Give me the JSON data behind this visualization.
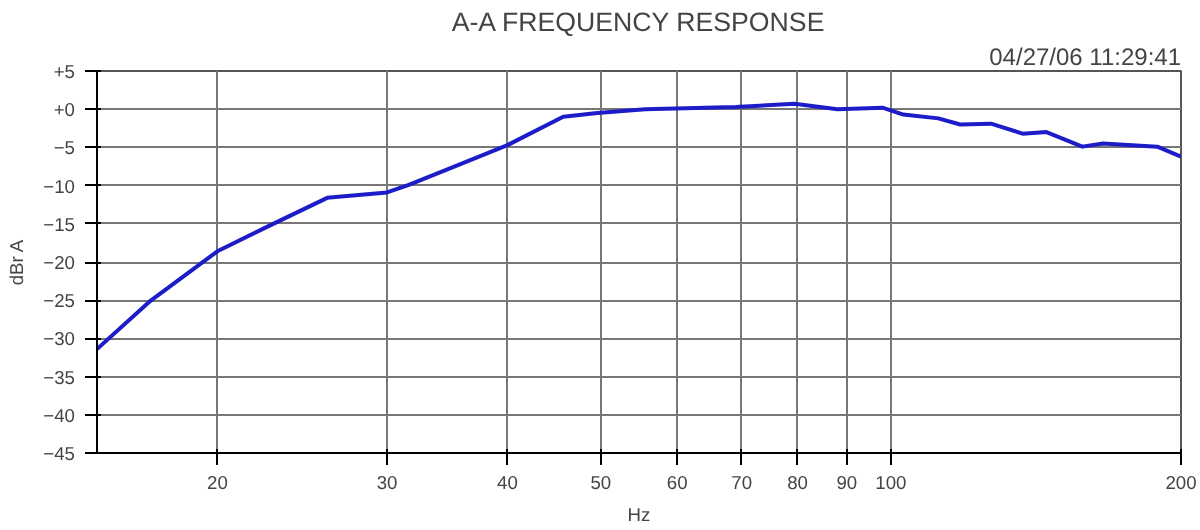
{
  "chart_data": {
    "type": "line",
    "title": "A-A FREQUENCY RESPONSE",
    "xlabel": "Hz",
    "ylabel": "dBr A",
    "annotations": [
      "04/27/06 11:29:41"
    ],
    "log": "x",
    "grid": true,
    "marker": "none",
    "line_style": "solid",
    "xlim": [
      15,
      200
    ],
    "xticks": [
      20,
      30,
      40,
      50,
      60,
      70,
      80,
      90,
      100,
      200
    ],
    "ylim": [
      -45,
      5
    ],
    "yticks": [
      {
        "value": 5,
        "label": "+5"
      },
      {
        "value": 0,
        "label": "+0"
      },
      -5,
      -10,
      -15,
      -20,
      -25,
      -30,
      -35,
      -40,
      -45
    ],
    "x": [
      15,
      17,
      20,
      22.6,
      26,
      30,
      31.6,
      34.6,
      40,
      45.7,
      49.6,
      55.6,
      69,
      79.4,
      88,
      98,
      103,
      112,
      118,
      127,
      137,
      145,
      158,
      166,
      189,
      200
    ],
    "series": [
      {
        "color": "#1c1cc8",
        "values": [
          -31.4,
          -25.2,
          -18.6,
          -15.3,
          -11.6,
          -10.9,
          -9.9,
          -7.9,
          -4.7,
          -1.0,
          -0.5,
          0,
          0.3,
          0.7,
          0,
          0.2,
          -0.7,
          -1.2,
          -2,
          -1.9,
          -3.2,
          -3.0,
          -4.9,
          -4.5,
          -4.9,
          -6.2
        ]
      }
    ]
  }
}
